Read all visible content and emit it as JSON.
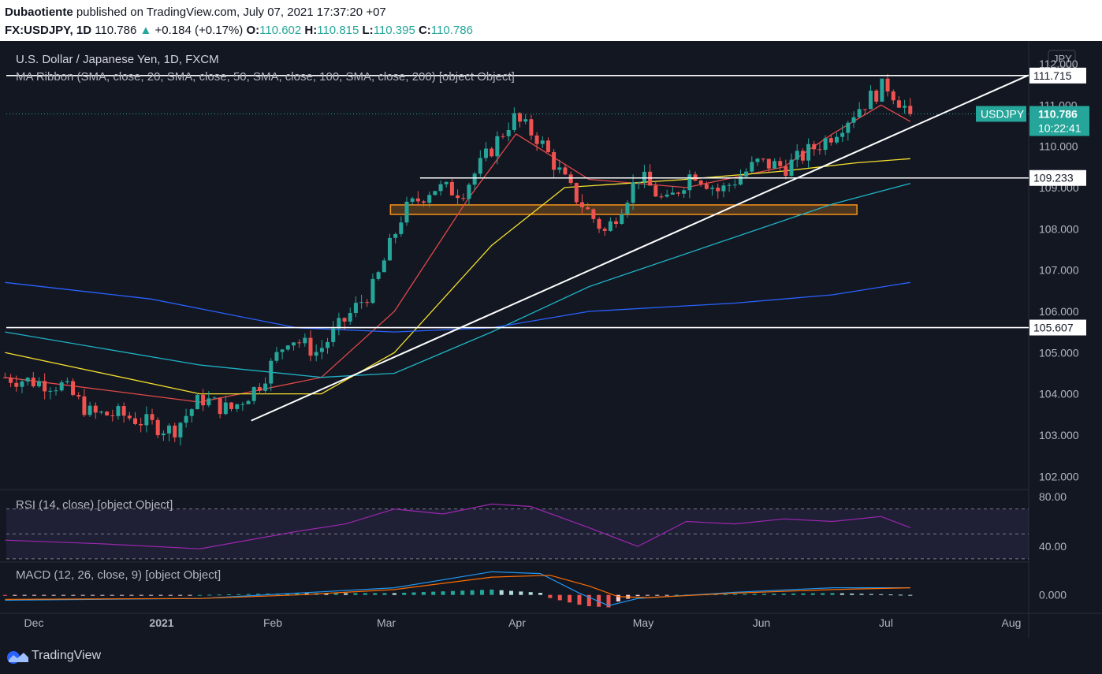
{
  "header": {
    "author": "Dubaotiente",
    "published_text": "published on TradingView.com, July 07, 2021 17:37:20 +07",
    "symbol": "FX:USDJPY, 1D",
    "last": "110.786",
    "change": "+0.184 (+0.17%)",
    "o_label": "O:",
    "o": "110.602",
    "h_label": "H:",
    "h": "110.815",
    "l_label": "L:",
    "l": "110.395",
    "c_label": "C:",
    "c": "110.786"
  },
  "legend": {
    "title": "U.S. Dollar / Japanese Yen, 1D, FXCM",
    "ma_ribbon": "MA Ribbon (SMA, close, 20, SMA, close, 50, SMA, close, 100, SMA, close, 200) [object Object]",
    "rsi": "RSI (14, close) [object Object]",
    "macd": "MACD (12, 26, close, 9) [object Object]"
  },
  "footer": {
    "brand": "TradingView"
  },
  "colors": {
    "up": "#26a69a",
    "down": "#ef5350",
    "background": "#131722",
    "sma20": "#e04848",
    "sma50": "#f5e02c",
    "sma100": "#1fb2c4",
    "sma200": "#2962ff",
    "rsi": "#9c27b0",
    "macd": "#2196f3",
    "signal": "#ff6d00",
    "zone": "#f7931a"
  },
  "chart_data": [
    {
      "type": "candlestick",
      "title": "U.S. Dollar / Japanese Yen, 1D, FXCM",
      "currency": "JPY",
      "symbol_tag": "USDJPY",
      "last_price": "110.786",
      "countdown": "10:22:41",
      "x_ticks": [
        "Dec",
        "2021",
        "Feb",
        "Mar",
        "Apr",
        "May",
        "Jun",
        "Jul",
        "Aug"
      ],
      "y_ticks": [
        "112.000",
        "111.000",
        "110.000",
        "109.000",
        "108.000",
        "107.000",
        "106.000",
        "105.000",
        "104.000",
        "103.000",
        "102.000"
      ],
      "ylim": [
        101.7,
        112.4
      ],
      "close_path": [
        {
          "date": "2020-11-24",
          "close": 104.4
        },
        {
          "date": "2020-12-01",
          "close": 104.3
        },
        {
          "date": "2020-12-08",
          "close": 104.2
        },
        {
          "date": "2020-12-15",
          "close": 103.5
        },
        {
          "date": "2020-12-22",
          "close": 103.5
        },
        {
          "date": "2021-01-04",
          "close": 103.1
        },
        {
          "date": "2021-01-12",
          "close": 103.9
        },
        {
          "date": "2021-01-20",
          "close": 103.6
        },
        {
          "date": "2021-01-28",
          "close": 104.2
        },
        {
          "date": "2021-02-05",
          "close": 105.4
        },
        {
          "date": "2021-02-12",
          "close": 105.0
        },
        {
          "date": "2021-02-18",
          "close": 105.7
        },
        {
          "date": "2021-02-26",
          "close": 106.6
        },
        {
          "date": "2021-03-05",
          "close": 108.4
        },
        {
          "date": "2021-03-12",
          "close": 109.0
        },
        {
          "date": "2021-03-19",
          "close": 108.9
        },
        {
          "date": "2021-03-31",
          "close": 110.7
        },
        {
          "date": "2021-04-06",
          "close": 110.2
        },
        {
          "date": "2021-04-14",
          "close": 108.9
        },
        {
          "date": "2021-04-22",
          "close": 107.9
        },
        {
          "date": "2021-04-30",
          "close": 109.3
        },
        {
          "date": "2021-05-07",
          "close": 108.6
        },
        {
          "date": "2021-05-14",
          "close": 109.4
        },
        {
          "date": "2021-05-21",
          "close": 108.9
        },
        {
          "date": "2021-05-31",
          "close": 109.6
        },
        {
          "date": "2021-06-07",
          "close": 109.5
        },
        {
          "date": "2021-06-17",
          "close": 110.2
        },
        {
          "date": "2021-06-24",
          "close": 110.9
        },
        {
          "date": "2021-07-01",
          "close": 111.5
        },
        {
          "date": "2021-07-07",
          "close": 110.786
        }
      ],
      "horizontal_levels": [
        "111.715",
        "109.233",
        "105.607"
      ],
      "level_values": [
        111.715,
        109.233,
        105.607
      ],
      "trendline": [
        {
          "date": "2021-01-26",
          "price": 103.35
        },
        {
          "date": "2021-07-07",
          "price": 110.45
        }
      ],
      "support_zone": {
        "from_date": "2021-03-02",
        "to_date": "2021-06-24",
        "low": 108.35,
        "high": 108.58
      },
      "sma": [
        {
          "name": "SMA 20",
          "points": [
            [
              0,
              104.4
            ],
            [
              40,
              103.8
            ],
            [
              65,
              104.4
            ],
            [
              80,
              106.0
            ],
            [
              95,
              108.7
            ],
            [
              105,
              110.3
            ],
            [
              120,
              109.2
            ],
            [
              140,
              109.0
            ],
            [
              160,
              109.5
            ],
            [
              170,
              110.3
            ],
            [
              180,
              111.0
            ],
            [
              186,
              110.6
            ]
          ]
        },
        {
          "name": "SMA 50",
          "points": [
            [
              0,
              105.0
            ],
            [
              40,
              104.0
            ],
            [
              65,
              104.0
            ],
            [
              80,
              105.0
            ],
            [
              100,
              107.6
            ],
            [
              115,
              109.0
            ],
            [
              140,
              109.2
            ],
            [
              160,
              109.4
            ],
            [
              175,
              109.6
            ],
            [
              186,
              109.7
            ]
          ]
        },
        {
          "name": "SMA 100",
          "points": [
            [
              0,
              105.5
            ],
            [
              40,
              104.7
            ],
            [
              65,
              104.4
            ],
            [
              80,
              104.5
            ],
            [
              100,
              105.5
            ],
            [
              120,
              106.6
            ],
            [
              150,
              107.8
            ],
            [
              170,
              108.6
            ],
            [
              186,
              109.1
            ]
          ]
        },
        {
          "name": "SMA 200",
          "points": [
            [
              0,
              106.7
            ],
            [
              30,
              106.3
            ],
            [
              60,
              105.6
            ],
            [
              80,
              105.5
            ],
            [
              100,
              105.6
            ],
            [
              120,
              106.0
            ],
            [
              150,
              106.2
            ],
            [
              170,
              106.4
            ],
            [
              186,
              106.7
            ]
          ]
        }
      ]
    },
    {
      "type": "line",
      "title": "RSI (14, close) [object Object]",
      "y_ticks": [
        "80.00",
        "40.00"
      ],
      "ylim": [
        28,
        85
      ],
      "band": [
        30,
        70
      ],
      "values": [
        [
          0,
          45
        ],
        [
          20,
          42
        ],
        [
          40,
          38
        ],
        [
          60,
          52
        ],
        [
          70,
          58
        ],
        [
          80,
          70
        ],
        [
          90,
          66
        ],
        [
          100,
          74
        ],
        [
          108,
          72
        ],
        [
          120,
          55
        ],
        [
          130,
          40
        ],
        [
          140,
          60
        ],
        [
          150,
          58
        ],
        [
          160,
          62
        ],
        [
          170,
          60
        ],
        [
          180,
          64
        ],
        [
          186,
          55
        ]
      ]
    },
    {
      "type": "bar+line",
      "title": "MACD (12, 26, close, 9) [object Object]",
      "y_ticks": [
        "0.000"
      ],
      "ylim": [
        -0.9,
        1.8
      ],
      "macd": [
        [
          0,
          -0.3
        ],
        [
          40,
          -0.2
        ],
        [
          60,
          0.1
        ],
        [
          80,
          0.4
        ],
        [
          100,
          1.3
        ],
        [
          110,
          1.2
        ],
        [
          118,
          0.1
        ],
        [
          124,
          -0.6
        ],
        [
          130,
          -0.2
        ],
        [
          150,
          0.15
        ],
        [
          170,
          0.4
        ],
        [
          186,
          0.4
        ]
      ],
      "signal": [
        [
          0,
          -0.25
        ],
        [
          40,
          -0.2
        ],
        [
          60,
          0.0
        ],
        [
          80,
          0.3
        ],
        [
          100,
          1.0
        ],
        [
          112,
          1.1
        ],
        [
          120,
          0.5
        ],
        [
          126,
          -0.1
        ],
        [
          132,
          -0.15
        ],
        [
          150,
          0.1
        ],
        [
          170,
          0.3
        ],
        [
          186,
          0.4
        ]
      ]
    }
  ]
}
